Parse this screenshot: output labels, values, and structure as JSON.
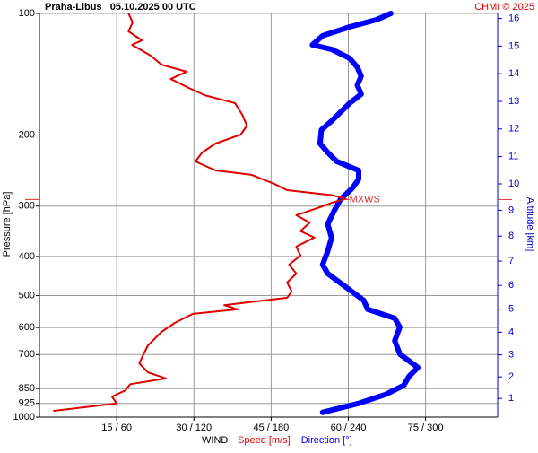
{
  "chart_data": {
    "type": "line",
    "title": "Praha-Libus   05.10.2025 00 UTC",
    "credit": "CHMI © 2025",
    "ylabel": "Pressure [hPa]",
    "y2label": "Altitude [km]",
    "legend_title": "WIND",
    "ylim": [
      100,
      1000
    ],
    "ylog": true,
    "yinverted": true,
    "yticks": [
      100,
      200,
      300,
      400,
      500,
      600,
      700,
      850,
      925,
      1000
    ],
    "xlim": [
      0,
      89
    ],
    "x2lim": [
      0,
      356
    ],
    "xticks": [
      {
        "value": 15,
        "label": "15 / 60"
      },
      {
        "value": 30,
        "label": "30 / 120"
      },
      {
        "value": 45,
        "label": "45 / 180"
      },
      {
        "value": 60,
        "label": "60 / 240"
      },
      {
        "value": 75,
        "label": "75 / 300"
      }
    ],
    "y2ticks": [
      1,
      2,
      3,
      4,
      5,
      6,
      7,
      8,
      9,
      10,
      11,
      12,
      13,
      14,
      15,
      16
    ],
    "grid": true,
    "annotations": [
      {
        "text": "MXWS",
        "pressure": 289,
        "color": "#e03030"
      }
    ],
    "series": [
      {
        "name": "Speed [m/s]",
        "color": "#e00000",
        "width": 2,
        "values": [
          17.3,
          18.1,
          17.3,
          19.9,
          18.0,
          21.6,
          23.7,
          28.6,
          25.5,
          29.0,
          32.1,
          38.0,
          39.4,
          40.3,
          39.1,
          34.2,
          31.6,
          30.3,
          34.2,
          41.2,
          45.5,
          48.1,
          56.9,
          59.5,
          56.9,
          54.2,
          49.9,
          52.5,
          50.7,
          53.4,
          49.9,
          50.7,
          48.5,
          49.9,
          48.1,
          49.0,
          48.1,
          35.9,
          38.5,
          29.8,
          26.3,
          23.7,
          21.1,
          20.2,
          19.4,
          21.1,
          24.6,
          17.6,
          16.7,
          14.1,
          15.0,
          2.8
        ],
        "pressure": [
          100,
          105.2,
          110.8,
          116.6,
          119.6,
          127.2,
          133.9,
          139.4,
          145.3,
          152.9,
          159.4,
          166.8,
          178.3,
          189.6,
          199.5,
          210,
          221,
          232.6,
          244.8,
          251,
          264,
          274,
          282,
          288,
          294,
          303,
          316,
          330,
          346,
          359,
          378,
          398,
          419,
          441,
          464,
          488,
          506,
          528,
          541,
          555,
          584,
          615,
          664,
          699,
          736,
          775,
          802,
          829,
          858,
          890,
          925,
          965
        ]
      },
      {
        "name": "Direction [°]",
        "color": "#0000ff",
        "width": 6,
        "axis": "x2",
        "values": [
          273,
          262,
          241,
          220,
          212,
          227,
          241,
          247,
          250,
          247,
          250,
          241,
          234,
          227,
          219,
          218,
          224,
          231,
          248,
          248,
          243,
          234,
          229,
          224,
          227,
          224,
          220,
          224,
          238,
          252,
          255,
          276,
          280,
          276,
          280,
          294,
          287,
          283,
          269,
          248,
          220
        ],
        "pressure": [
          100,
          103.6,
          108,
          113.6,
          119.6,
          122.7,
          129.1,
          135.9,
          143,
          150.5,
          158.5,
          166.8,
          175.5,
          184.7,
          194.4,
          210,
          221,
          232.6,
          244.8,
          257.6,
          271.1,
          288.4,
          308.1,
          332.6,
          359.4,
          387.8,
          419,
          440.9,
          475.9,
          513.8,
          540.7,
          569,
          598.9,
          646.6,
          698,
          753.6,
          793,
          834.7,
          878.4,
          924.5,
          973
        ]
      }
    ]
  }
}
